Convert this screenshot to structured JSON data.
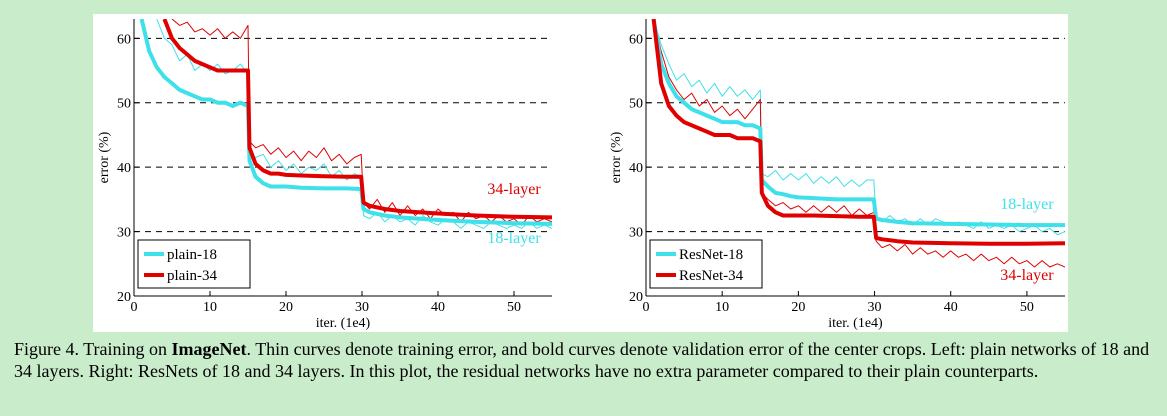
{
  "colors": {
    "background": "#c9ecca",
    "series_18": "#3ee0ea",
    "series_34": "#e00000"
  },
  "caption": {
    "prefix": "Figure 4. Training on ",
    "bold": "ImageNet",
    "rest": ". Thin curves denote training error, and bold curves denote validation error of the center crops. Left: plain networks of 18 and 34 layers. Right: ResNets of 18 and 34 layers. In this plot, the residual networks have no extra parameter compared to their plain counterparts."
  },
  "chart_data": [
    {
      "type": "line",
      "xlabel": "iter. (1e4)",
      "ylabel": "error (%)",
      "xlim": [
        0,
        55
      ],
      "ylim": [
        20,
        63
      ],
      "xticks": [
        0,
        10,
        20,
        30,
        40,
        50
      ],
      "yticks": [
        20,
        30,
        40,
        50,
        60
      ],
      "grid": "dashed horizontal at 30, 40, 50, 60",
      "legend_position": "bottom-left",
      "annotations": [
        {
          "text": "34-layer",
          "x": 50,
          "y": 35.8,
          "color": "#e00000"
        },
        {
          "text": "18-layer",
          "x": 50,
          "y": 28.2,
          "color": "#3ee0ea"
        }
      ],
      "series": [
        {
          "name": "plain-18",
          "color": "#3ee0ea",
          "kind": "val",
          "x": [
            1,
            2,
            3,
            4,
            5,
            6,
            7,
            8,
            9,
            10,
            11,
            12,
            13,
            14,
            15,
            15.2,
            16,
            17,
            18,
            19,
            20,
            22,
            25,
            28,
            29.9,
            30.2,
            31,
            33,
            35,
            40,
            45,
            50,
            55
          ],
          "y": [
            63,
            58,
            55.5,
            54,
            53,
            52,
            51.5,
            51,
            50.5,
            50.5,
            50,
            50,
            49.5,
            50,
            49.5,
            41,
            38.5,
            37.5,
            37,
            37,
            37,
            36.8,
            36.7,
            36.7,
            36.6,
            33.5,
            33,
            32.5,
            32.2,
            31.8,
            31.5,
            31.3,
            31.2
          ]
        },
        {
          "name": "plain-34",
          "color": "#e00000",
          "kind": "val",
          "x": [
            4,
            5,
            6,
            7,
            8,
            9,
            10,
            11,
            12,
            13,
            14,
            15,
            15.2,
            16,
            17,
            18,
            19,
            20,
            22,
            25,
            28,
            29.9,
            30.2,
            31,
            33,
            35,
            40,
            45,
            50,
            55
          ],
          "y": [
            63,
            60,
            58.5,
            57.5,
            56.5,
            56,
            55.5,
            55,
            55,
            55,
            55,
            55,
            43,
            40.5,
            39.5,
            39,
            39,
            38.8,
            38.7,
            38.6,
            38.5,
            38.5,
            34.5,
            34,
            33.5,
            33.2,
            32.8,
            32.5,
            32.3,
            32.2
          ]
        },
        {
          "name": "plain-18-train",
          "color": "#3ee0ea",
          "kind": "train",
          "x": [
            3,
            4,
            5,
            6,
            7,
            8,
            9,
            10,
            11,
            12,
            13,
            14,
            15,
            15.2,
            16,
            17,
            18,
            19,
            20,
            21,
            22,
            23,
            24,
            25,
            26,
            27,
            28,
            29,
            29.9,
            30.2,
            31,
            32,
            33,
            34,
            35,
            36,
            37,
            38,
            39,
            40,
            41,
            42,
            43,
            44,
            45,
            46,
            47,
            48,
            49,
            50,
            51,
            52,
            53,
            54,
            55
          ],
          "y": [
            63,
            60,
            59,
            56.5,
            57.5,
            55,
            56,
            55,
            56,
            54.5,
            55,
            56,
            54.5,
            42,
            41.5,
            42,
            40,
            41,
            39.5,
            40.5,
            39,
            40,
            39.5,
            40.5,
            38.5,
            39.5,
            38,
            39,
            38.5,
            32.5,
            32,
            33,
            31.5,
            32.5,
            31.5,
            32,
            31,
            32.5,
            31.5,
            31,
            32,
            31.5,
            30.5,
            31.5,
            31,
            30.5,
            31.5,
            31,
            30.5,
            31,
            30.5,
            31.5,
            30.5,
            31,
            30.5
          ]
        },
        {
          "name": "plain-34-train",
          "color": "#e00000",
          "kind": "train",
          "x": [
            5,
            6,
            7,
            8,
            9,
            10,
            11,
            12,
            13,
            14,
            15,
            15.2,
            16,
            17,
            18,
            19,
            20,
            21,
            22,
            23,
            24,
            25,
            26,
            27,
            28,
            29,
            29.9,
            30.2,
            31,
            32,
            33,
            34,
            35,
            36,
            37,
            38,
            39,
            40,
            41,
            42,
            43,
            44,
            45,
            46,
            47,
            48,
            49,
            50,
            51,
            52,
            53,
            54,
            55
          ],
          "y": [
            63,
            62,
            62.5,
            61,
            61.5,
            60.5,
            61.5,
            60,
            61,
            60,
            62,
            44,
            43,
            43.5,
            42,
            43,
            41.5,
            42.5,
            41,
            42.5,
            41.5,
            43,
            41,
            42,
            40.5,
            41.5,
            42,
            34.5,
            33.5,
            35,
            33,
            34.5,
            32.5,
            34,
            32.5,
            33.5,
            32,
            33.5,
            32.5,
            33,
            31.5,
            33,
            32,
            32.5,
            31.5,
            32.5,
            31.5,
            32,
            31,
            32.5,
            31.5,
            32,
            31.5
          ]
        }
      ]
    },
    {
      "type": "line",
      "xlabel": "iter. (1e4)",
      "ylabel": "error (%)",
      "xlim": [
        0,
        55
      ],
      "ylim": [
        20,
        63
      ],
      "xticks": [
        0,
        10,
        20,
        30,
        40,
        50
      ],
      "yticks": [
        20,
        30,
        40,
        50,
        60
      ],
      "grid": "dashed horizontal at 30, 40, 50, 60",
      "legend_position": "bottom-left",
      "annotations": [
        {
          "text": "18-layer",
          "x": 50,
          "y": 33.5,
          "color": "#3ee0ea"
        },
        {
          "text": "34-layer",
          "x": 50,
          "y": 22.5,
          "color": "#e00000"
        }
      ],
      "series": [
        {
          "name": "ResNet-18",
          "color": "#3ee0ea",
          "kind": "val",
          "x": [
            1,
            2,
            3,
            4,
            5,
            6,
            7,
            8,
            9,
            10,
            11,
            12,
            13,
            14,
            15,
            15.2,
            16,
            17,
            18,
            19,
            20,
            22,
            25,
            28,
            29.9,
            30.2,
            31,
            33,
            35,
            40,
            45,
            50,
            55
          ],
          "y": [
            63,
            56,
            53,
            51,
            50,
            49,
            48.5,
            48,
            47.5,
            47,
            47,
            47,
            46.5,
            46.5,
            46,
            38,
            37,
            36,
            35.8,
            35.5,
            35.3,
            35.2,
            35,
            35,
            35,
            32,
            31.8,
            31.5,
            31.3,
            31.2,
            31.1,
            31,
            31
          ]
        },
        {
          "name": "ResNet-34",
          "color": "#e00000",
          "kind": "val",
          "x": [
            1,
            2,
            3,
            4,
            5,
            6,
            7,
            8,
            9,
            10,
            11,
            12,
            13,
            14,
            15,
            15.2,
            16,
            17,
            18,
            19,
            20,
            22,
            25,
            28,
            29.9,
            30.2,
            31,
            33,
            35,
            40,
            45,
            50,
            55
          ],
          "y": [
            63,
            53,
            49.5,
            48,
            47,
            46.5,
            46,
            45.5,
            45,
            45,
            45,
            44.5,
            44.5,
            44.5,
            44,
            36,
            34,
            33,
            32.5,
            32.5,
            32.5,
            32.5,
            32.4,
            32.3,
            32.3,
            29,
            28.8,
            28.5,
            28.3,
            28.2,
            28.1,
            28.1,
            28.2
          ]
        },
        {
          "name": "ResNet-18-train",
          "color": "#3ee0ea",
          "kind": "train",
          "x": [
            1,
            2,
            3,
            4,
            5,
            6,
            7,
            8,
            9,
            10,
            11,
            12,
            13,
            14,
            15,
            15.2,
            16,
            17,
            18,
            19,
            20,
            21,
            22,
            23,
            24,
            25,
            26,
            27,
            28,
            29,
            29.9,
            30.2,
            31,
            32,
            33,
            34,
            35,
            36,
            37,
            38,
            39,
            40,
            41,
            42,
            43,
            44,
            45,
            46,
            47,
            48,
            49,
            50,
            51,
            52,
            53,
            54,
            55
          ],
          "y": [
            63,
            59,
            56,
            53.5,
            54.5,
            52.5,
            53.5,
            51.5,
            53,
            51,
            52.5,
            51,
            52,
            50.5,
            52,
            39,
            38.5,
            39.5,
            38,
            39,
            38,
            39,
            37.5,
            38.5,
            37.5,
            38.5,
            37,
            38,
            37,
            38,
            38,
            32,
            31.5,
            32.5,
            31.5,
            32,
            31,
            32,
            31,
            32,
            31.5,
            31,
            31.5,
            31,
            30.5,
            31.5,
            30.5,
            31,
            30.5,
            31,
            30,
            30.5,
            31,
            30,
            30.5,
            29.5,
            30
          ]
        },
        {
          "name": "ResNet-34-train",
          "color": "#e00000",
          "kind": "train",
          "x": [
            1,
            2,
            3,
            4,
            5,
            6,
            7,
            8,
            9,
            10,
            11,
            12,
            13,
            14,
            15,
            15.2,
            16,
            17,
            18,
            19,
            20,
            21,
            22,
            23,
            24,
            25,
            26,
            27,
            28,
            29,
            29.9,
            30.2,
            31,
            32,
            33,
            34,
            35,
            36,
            37,
            38,
            39,
            40,
            41,
            42,
            43,
            44,
            45,
            46,
            47,
            48,
            49,
            50,
            51,
            52,
            53,
            54,
            55
          ],
          "y": [
            63,
            58,
            54,
            52,
            50.5,
            51.5,
            49.5,
            50.5,
            48.5,
            49.5,
            48,
            49,
            47.5,
            49,
            50.5,
            36,
            35,
            34,
            34.5,
            33.5,
            34,
            33,
            34,
            33,
            34,
            33,
            34,
            32.5,
            33.5,
            32.5,
            33,
            28.5,
            27.5,
            28,
            27,
            28,
            26.5,
            27.5,
            26.5,
            27,
            26,
            27,
            26,
            26.5,
            25.5,
            26.5,
            25.5,
            26,
            25,
            26,
            25,
            25.5,
            24.5,
            25.5,
            24.5,
            25,
            24.5
          ]
        }
      ]
    }
  ]
}
